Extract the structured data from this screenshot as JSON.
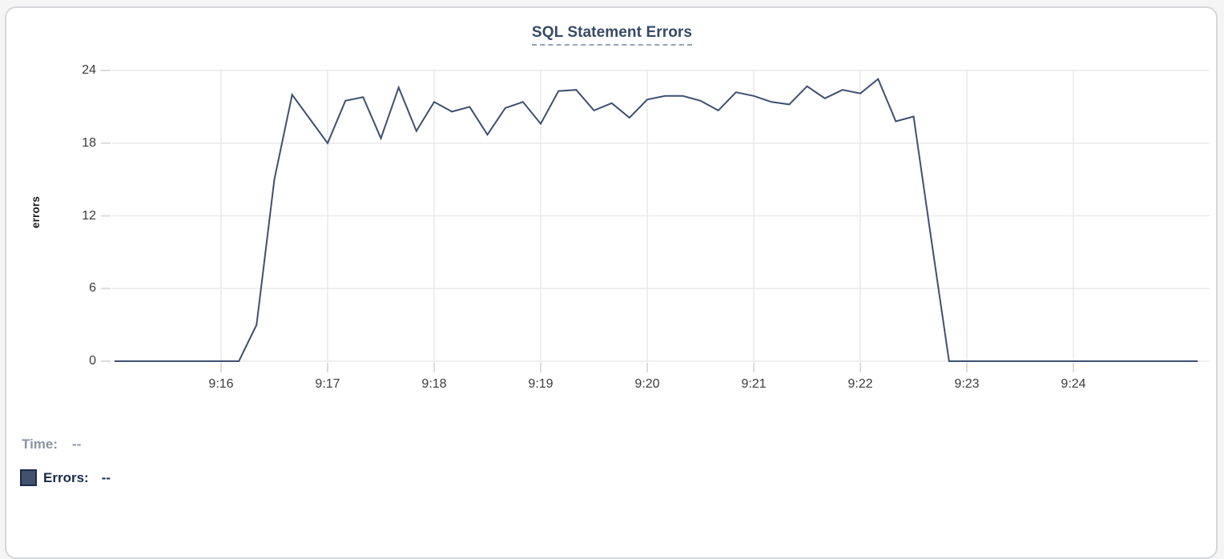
{
  "chart": {
    "title": "SQL Statement Errors",
    "y_axis_label": "errors"
  },
  "legend": {
    "time_label": "Time:",
    "time_value": "--",
    "errors_label": "Errors:",
    "errors_value": "--",
    "swatch_color": "#42526E"
  },
  "colors": {
    "line": "#3E5070",
    "title_text": "#374a66",
    "grid": "#eaeaea",
    "tick_mark": "#dcdcdc",
    "tick_text": "#3c3c3c",
    "time_text": "#8a93a5",
    "errors_text": "#172B4D",
    "card_border": "#d5d7da"
  },
  "chart_data": {
    "type": "line",
    "title": "SQL Statement Errors",
    "xlabel": "",
    "ylabel": "errors",
    "series_name": "Errors",
    "ylim": [
      0,
      24
    ],
    "yticks": [
      24,
      18,
      12,
      6,
      0
    ],
    "xticks": [
      "9:16",
      "9:17",
      "9:18",
      "9:19",
      "9:20",
      "9:21",
      "9:22",
      "9:23",
      "9:24"
    ],
    "x_range": [
      "9:15:00",
      "9:25:10"
    ],
    "grid": true,
    "legend_position": "bottom-left",
    "points": [
      [
        "9:15:00",
        0
      ],
      [
        "9:15:10",
        0
      ],
      [
        "9:15:20",
        0
      ],
      [
        "9:15:30",
        0
      ],
      [
        "9:15:40",
        0
      ],
      [
        "9:15:50",
        0
      ],
      [
        "9:16:00",
        0
      ],
      [
        "9:16:10",
        0
      ],
      [
        "9:16:20",
        3
      ],
      [
        "9:16:30",
        15
      ],
      [
        "9:16:40",
        22
      ],
      [
        "9:16:50",
        20
      ],
      [
        "9:17:00",
        18
      ],
      [
        "9:17:10",
        21.5
      ],
      [
        "9:17:20",
        21.8
      ],
      [
        "9:17:30",
        18.4
      ],
      [
        "9:17:40",
        22.6
      ],
      [
        "9:17:50",
        19
      ],
      [
        "9:18:00",
        21.4
      ],
      [
        "9:18:10",
        20.6
      ],
      [
        "9:18:20",
        21
      ],
      [
        "9:18:30",
        18.7
      ],
      [
        "9:18:40",
        20.9
      ],
      [
        "9:18:50",
        21.4
      ],
      [
        "9:19:00",
        19.6
      ],
      [
        "9:19:10",
        22.3
      ],
      [
        "9:19:20",
        22.4
      ],
      [
        "9:19:30",
        20.7
      ],
      [
        "9:19:40",
        21.3
      ],
      [
        "9:19:50",
        20.1
      ],
      [
        "9:20:00",
        21.6
      ],
      [
        "9:20:10",
        21.9
      ],
      [
        "9:20:20",
        21.9
      ],
      [
        "9:20:30",
        21.5
      ],
      [
        "9:20:40",
        20.7
      ],
      [
        "9:20:50",
        22.2
      ],
      [
        "9:21:00",
        21.9
      ],
      [
        "9:21:10",
        21.4
      ],
      [
        "9:21:20",
        21.2
      ],
      [
        "9:21:30",
        22.7
      ],
      [
        "9:21:40",
        21.7
      ],
      [
        "9:21:50",
        22.4
      ],
      [
        "9:22:00",
        22.1
      ],
      [
        "9:22:10",
        23.3
      ],
      [
        "9:22:20",
        19.8
      ],
      [
        "9:22:30",
        20.2
      ],
      [
        "9:22:40",
        10
      ],
      [
        "9:22:50",
        0
      ],
      [
        "9:23:00",
        0
      ],
      [
        "9:23:10",
        0
      ],
      [
        "9:23:20",
        0
      ],
      [
        "9:23:30",
        0
      ],
      [
        "9:23:40",
        0
      ],
      [
        "9:23:50",
        0
      ],
      [
        "9:24:00",
        0
      ],
      [
        "9:24:10",
        0
      ],
      [
        "9:24:20",
        0
      ],
      [
        "9:24:30",
        0
      ],
      [
        "9:24:40",
        0
      ],
      [
        "9:24:50",
        0
      ],
      [
        "9:25:00",
        0
      ],
      [
        "9:25:10",
        0
      ]
    ]
  }
}
